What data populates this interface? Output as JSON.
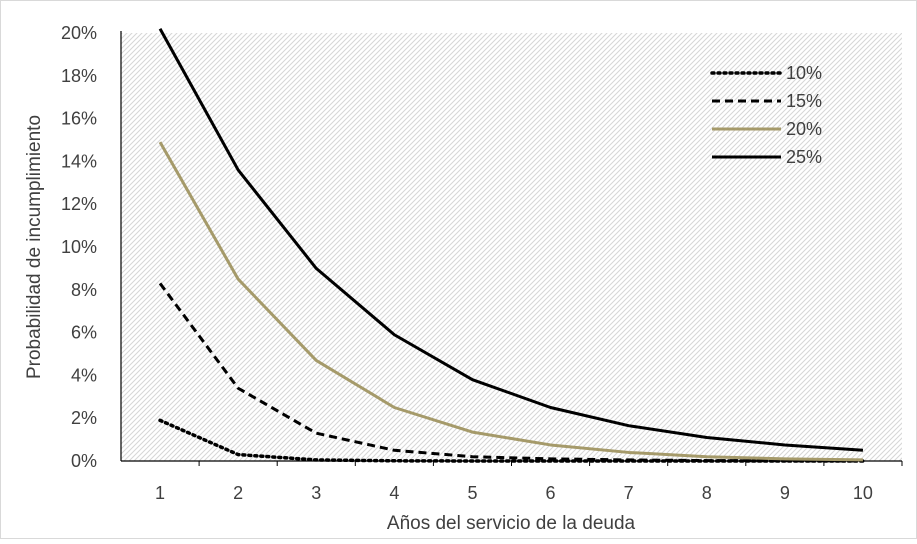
{
  "chart_data": {
    "type": "line",
    "title": "",
    "xlabel": "Años del servicio de la deuda",
    "ylabel": "Probabilidad de incumplimiento",
    "x": [
      1,
      2,
      3,
      4,
      5,
      6,
      7,
      8,
      9,
      10
    ],
    "x_tick_labels": [
      "1",
      "2",
      "3",
      "4",
      "5",
      "6",
      "7",
      "8",
      "9",
      "10"
    ],
    "ylim": [
      0,
      0.2
    ],
    "y_tick_values": [
      0,
      0.02,
      0.04,
      0.06,
      0.08,
      0.1,
      0.12,
      0.14,
      0.16,
      0.18,
      0.2
    ],
    "y_tick_labels": [
      "0%",
      "2%",
      "4%",
      "6%",
      "8%",
      "10%",
      "12%",
      "14%",
      "16%",
      "18%",
      "20%"
    ],
    "grid": false,
    "plot_background": "diagonal hatch",
    "legend_position": "top-right",
    "series": [
      {
        "name": "10%",
        "style": "dotted",
        "color": "#000000",
        "values": [
          0.019,
          0.003,
          0.0005,
          0.0001,
          0.0,
          0.0,
          0.0,
          0.0,
          0.0,
          0.0
        ]
      },
      {
        "name": "15%",
        "style": "dashed",
        "color": "#000000",
        "values": [
          0.083,
          0.034,
          0.013,
          0.005,
          0.002,
          0.001,
          0.0005,
          0.0002,
          0.0001,
          0.0
        ]
      },
      {
        "name": "20%",
        "style": "solid",
        "color": "#A59A6A",
        "values": [
          0.149,
          0.085,
          0.047,
          0.025,
          0.0135,
          0.0075,
          0.004,
          0.002,
          0.001,
          0.0005
        ]
      },
      {
        "name": "25%",
        "style": "solid",
        "color": "#000000",
        "values": [
          0.202,
          0.136,
          0.09,
          0.059,
          0.038,
          0.025,
          0.0165,
          0.011,
          0.0075,
          0.005
        ]
      }
    ]
  }
}
